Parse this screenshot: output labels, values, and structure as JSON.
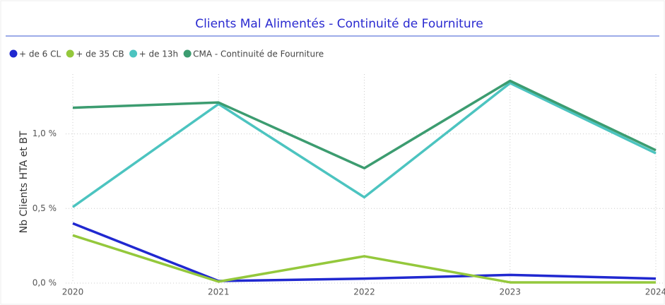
{
  "chart_data": {
    "type": "line",
    "title": "Clients Mal Alimentés - Continuité de Fourniture",
    "y_label": "Nb Clients HTA et BT",
    "x": [
      2020,
      2021,
      2022,
      2023,
      2024
    ],
    "xlim": [
      2020,
      2024
    ],
    "ylim": [
      0,
      1.4
    ],
    "yticks": [
      {
        "value": 0,
        "label": "0,0 %"
      },
      {
        "value": 0.5,
        "label": "0,5 %"
      },
      {
        "value": 1.0,
        "label": "1,0 %"
      }
    ],
    "grid": true,
    "legend": "top-left",
    "series": [
      {
        "name": "+ de 6 CL",
        "color": "#2028d0",
        "values": [
          0.4,
          0.014,
          0.03,
          0.055,
          0.03
        ]
      },
      {
        "name": "+ de 35 CB",
        "color": "#94c83c",
        "values": [
          0.32,
          0.01,
          0.18,
          0.005,
          0.005
        ]
      },
      {
        "name": "+ de 13h",
        "color": "#4cc4c0",
        "values": [
          0.51,
          1.2,
          0.575,
          1.34,
          0.87
        ]
      },
      {
        "name": "CMA - Continuité de Fourniture",
        "color": "#3c9c70",
        "values": [
          1.175,
          1.21,
          0.77,
          1.355,
          0.89
        ]
      }
    ]
  }
}
